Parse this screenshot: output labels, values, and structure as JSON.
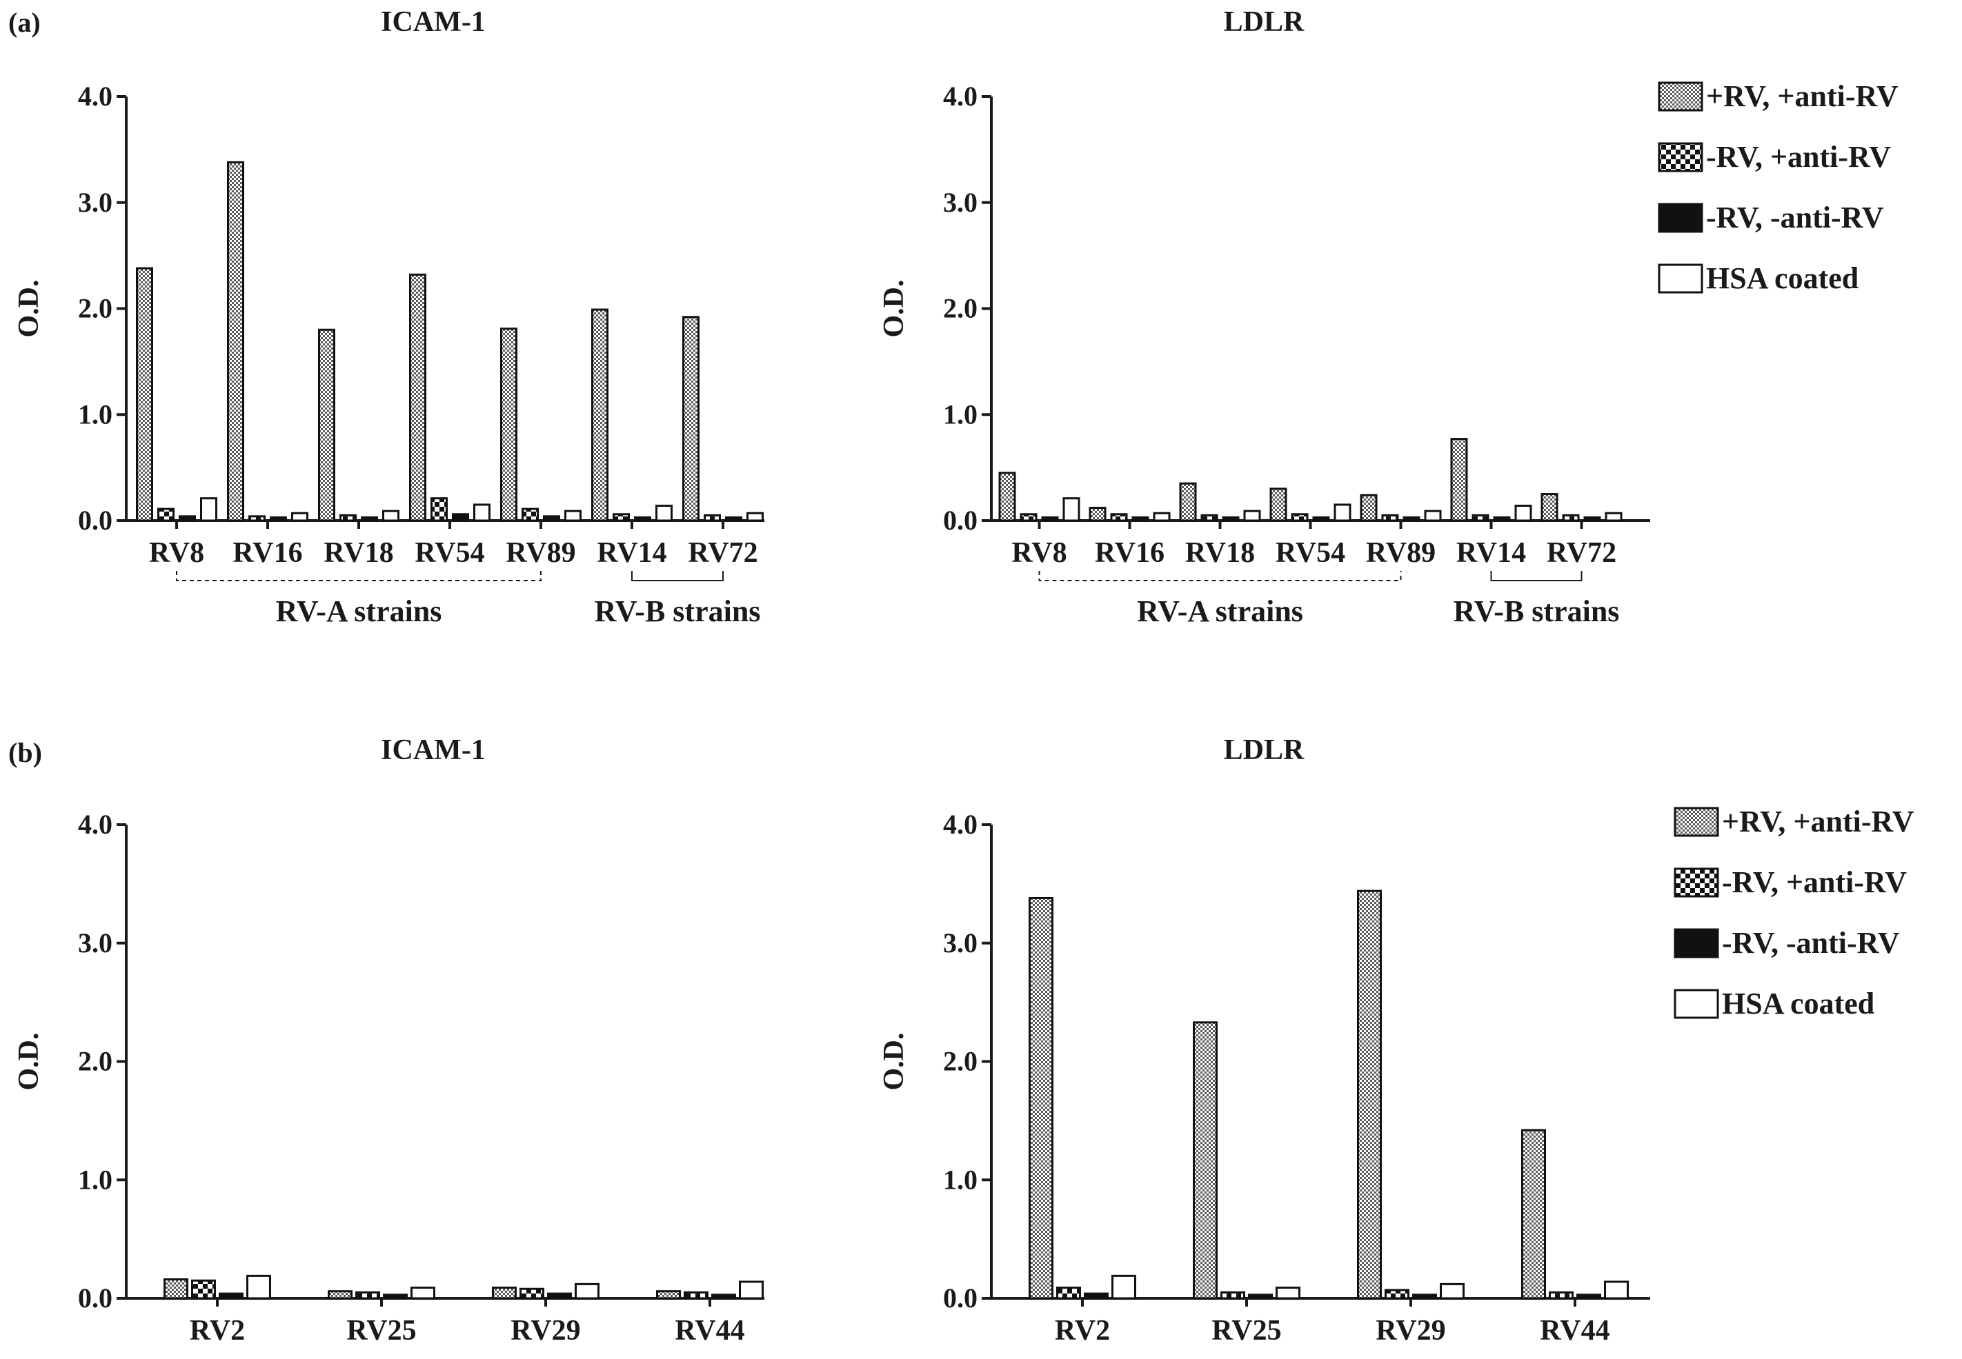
{
  "panels": {
    "a": {
      "label": "(a)"
    },
    "b": {
      "label": "(b)"
    }
  },
  "legend_entries": [
    "+RV, +anti-RV",
    "-RV, +anti-RV",
    "-RV, -anti-RV",
    "HSA coated"
  ],
  "chart_data": [
    {
      "id": "a-icam1",
      "panel": "a",
      "type": "bar",
      "title": "ICAM-1",
      "ylabel": "O.D.",
      "xlabel": "",
      "ylim": [
        0,
        4.0
      ],
      "yticks": [
        "0.0",
        "1.0",
        "2.0",
        "3.0",
        "4.0"
      ],
      "categories": [
        "RV8",
        "RV16",
        "RV18",
        "RV54",
        "RV89",
        "RV14",
        "RV72"
      ],
      "groups": [
        {
          "label": "RV-A strains",
          "from": 0,
          "to": 4,
          "style": "dashed"
        },
        {
          "label": "RV-B strains",
          "from": 5,
          "to": 6,
          "style": "solid"
        }
      ],
      "series": [
        {
          "name": "+RV, +anti-RV",
          "values": [
            2.38,
            3.38,
            1.8,
            2.32,
            1.81,
            1.99,
            1.92
          ]
        },
        {
          "name": "-RV, +anti-RV",
          "values": [
            0.11,
            0.04,
            0.05,
            0.21,
            0.11,
            0.06,
            0.05
          ]
        },
        {
          "name": "-RV, -anti-RV",
          "values": [
            0.04,
            0.03,
            0.03,
            0.06,
            0.04,
            0.03,
            0.03
          ]
        },
        {
          "name": "HSA coated",
          "values": [
            0.21,
            0.07,
            0.09,
            0.15,
            0.09,
            0.14,
            0.07
          ]
        }
      ],
      "legend": false
    },
    {
      "id": "a-ldlr",
      "panel": "a",
      "type": "bar",
      "title": "LDLR",
      "ylabel": "O.D.",
      "xlabel": "",
      "ylim": [
        0,
        4.0
      ],
      "yticks": [
        "0.0",
        "1.0",
        "2.0",
        "3.0",
        "4.0"
      ],
      "categories": [
        "RV8",
        "RV16",
        "RV18",
        "RV54",
        "RV89",
        "RV14",
        "RV72"
      ],
      "groups": [
        {
          "label": "RV-A strains",
          "from": 0,
          "to": 4,
          "style": "dashed"
        },
        {
          "label": "RV-B strains",
          "from": 5,
          "to": 6,
          "style": "solid"
        }
      ],
      "series": [
        {
          "name": "+RV, +anti-RV",
          "values": [
            0.45,
            0.12,
            0.35,
            0.3,
            0.24,
            0.77,
            0.25
          ]
        },
        {
          "name": "-RV, +anti-RV",
          "values": [
            0.06,
            0.06,
            0.05,
            0.06,
            0.05,
            0.05,
            0.05
          ]
        },
        {
          "name": "-RV, -anti-RV",
          "values": [
            0.03,
            0.03,
            0.03,
            0.03,
            0.03,
            0.03,
            0.03
          ]
        },
        {
          "name": "HSA coated",
          "values": [
            0.21,
            0.07,
            0.09,
            0.15,
            0.09,
            0.14,
            0.07
          ]
        }
      ],
      "legend": true
    },
    {
      "id": "b-icam1",
      "panel": "b",
      "type": "bar",
      "title": "ICAM-1",
      "ylabel": "O.D.",
      "xlabel": "",
      "ylim": [
        0,
        4.0
      ],
      "yticks": [
        "0.0",
        "1.0",
        "2.0",
        "3.0",
        "4.0"
      ],
      "categories": [
        "RV2",
        "RV25",
        "RV29",
        "RV44"
      ],
      "groups": [],
      "series": [
        {
          "name": "+RV, +anti-RV",
          "values": [
            0.16,
            0.06,
            0.09,
            0.06
          ]
        },
        {
          "name": "-RV, +anti-RV",
          "values": [
            0.15,
            0.05,
            0.08,
            0.05
          ]
        },
        {
          "name": "-RV, -anti-RV",
          "values": [
            0.04,
            0.03,
            0.04,
            0.03
          ]
        },
        {
          "name": "HSA coated",
          "values": [
            0.19,
            0.09,
            0.12,
            0.14
          ]
        }
      ],
      "legend": false
    },
    {
      "id": "b-ldlr",
      "panel": "b",
      "type": "bar",
      "title": "LDLR",
      "ylabel": "O.D.",
      "xlabel": "",
      "ylim": [
        0,
        4.0
      ],
      "yticks": [
        "0.0",
        "1.0",
        "2.0",
        "3.0",
        "4.0"
      ],
      "categories": [
        "RV2",
        "RV25",
        "RV29",
        "RV44"
      ],
      "groups": [],
      "series": [
        {
          "name": "+RV, +anti-RV",
          "values": [
            3.38,
            2.33,
            3.44,
            1.42
          ]
        },
        {
          "name": "-RV, +anti-RV",
          "values": [
            0.09,
            0.05,
            0.07,
            0.05
          ]
        },
        {
          "name": "-RV, -anti-RV",
          "values": [
            0.04,
            0.03,
            0.03,
            0.03
          ]
        },
        {
          "name": "HSA coated",
          "values": [
            0.19,
            0.09,
            0.12,
            0.14
          ]
        }
      ],
      "legend": true
    }
  ]
}
